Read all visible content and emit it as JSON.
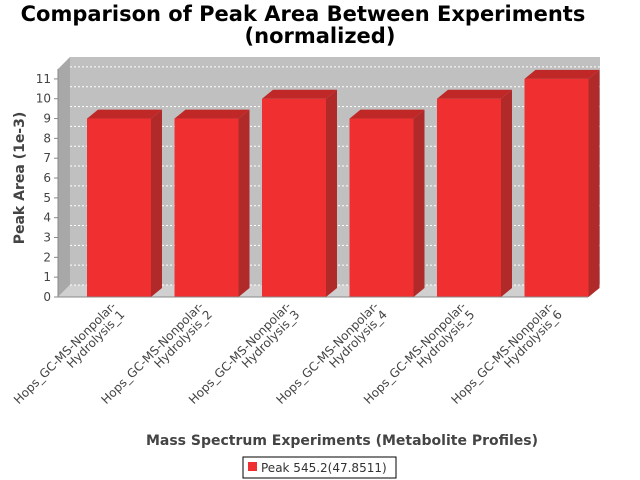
{
  "chart_data": {
    "type": "bar",
    "title_lines": [
      "Comparison of Peak Area Between Experiments",
      "(normalized)"
    ],
    "xlabel": "Mass Spectrum Experiments (Metabolite Profiles)",
    "ylabel": "Peak Area (1e-3)",
    "ylim": [
      0,
      11.5
    ],
    "yticks": [
      0,
      1,
      2,
      3,
      4,
      5,
      6,
      7,
      8,
      9,
      10,
      11
    ],
    "grid": true,
    "legend_position": "bottom-center",
    "categories": [
      [
        "Hops_GC-MS-Nonpolar-",
        "Hydrolysis_1"
      ],
      [
        "Hops_GC-MS-Nonpolar-",
        "Hydrolysis_2"
      ],
      [
        "Hops_GC-MS-Nonpolar-",
        "Hydrolysis_3"
      ],
      [
        "Hops_GC-MS-Nonpolar-",
        "Hydrolysis_4"
      ],
      [
        "Hops_GC-MS-Nonpolar-",
        "Hydrolysis_5"
      ],
      [
        "Hops_GC-MS-Nonpolar-",
        "Hydrolysis_6"
      ]
    ],
    "series": [
      {
        "name": "Peak 545.2(47.8511)",
        "color": "#f03030",
        "values": [
          9,
          9,
          10,
          9,
          10,
          11
        ]
      }
    ]
  }
}
